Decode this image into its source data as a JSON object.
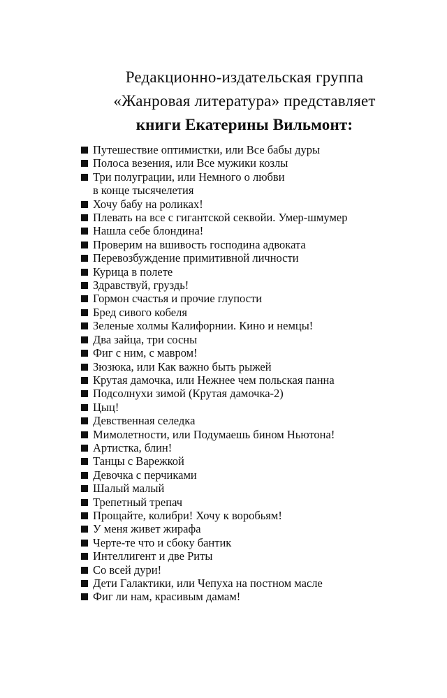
{
  "header": {
    "line1": "Редакционно-издательская группа",
    "line2": "«Жанровая литература» представляет",
    "line3": "книги Екатерины Вильмонт:"
  },
  "books": [
    [
      "Путешествие оптимистки, или Все бабы дуры"
    ],
    [
      "Полоса везения, или Все мужики козлы"
    ],
    [
      "Три полуграции, или Немного о любви",
      "в конце тысячелетия"
    ],
    [
      "Хочу бабу на роликах!"
    ],
    [
      "Плевать на все с гигантской секвойи. Умер-шмумер"
    ],
    [
      "Нашла себе блондина!"
    ],
    [
      "Проверим на вшивость господина адвоката"
    ],
    [
      "Перевозбуждение примитивной личности"
    ],
    [
      "Курица в полете"
    ],
    [
      "Здравствуй, груздь!"
    ],
    [
      "Гормон счастья и прочие глупости"
    ],
    [
      "Бред сивого кобеля"
    ],
    [
      "Зеленые холмы Калифорнии. Кино и немцы!"
    ],
    [
      "Два зайца, три сосны"
    ],
    [
      "Фиг с ним, с мавром!"
    ],
    [
      "Зюзюка, или Как важно быть рыжей"
    ],
    [
      "Крутая дамочка, или Нежнее чем польская панна"
    ],
    [
      "Подсолнухи зимой (Крутая дамочка-2)"
    ],
    [
      "Цыц!"
    ],
    [
      "Девственная селедка"
    ],
    [
      "Мимолетности, или Подумаешь бином Ньютона!"
    ],
    [
      "Артистка, блин!"
    ],
    [
      "Танцы с Варежкой"
    ],
    [
      "Девочка с перчиками"
    ],
    [
      "Шалый малый"
    ],
    [
      "Трепетный трепач"
    ],
    [
      "Прощайте, колибри! Хочу к воробьям!"
    ],
    [
      "У меня живет жирафа"
    ],
    [
      "Черте-те что и сбоку бантик"
    ],
    [
      "Интеллигент и две Риты"
    ],
    [
      "Со всей дури!"
    ],
    [
      "Дети Галактики, или Чепуха на постном масле"
    ],
    [
      "Фиг ли нам, красивым дамам!"
    ]
  ]
}
